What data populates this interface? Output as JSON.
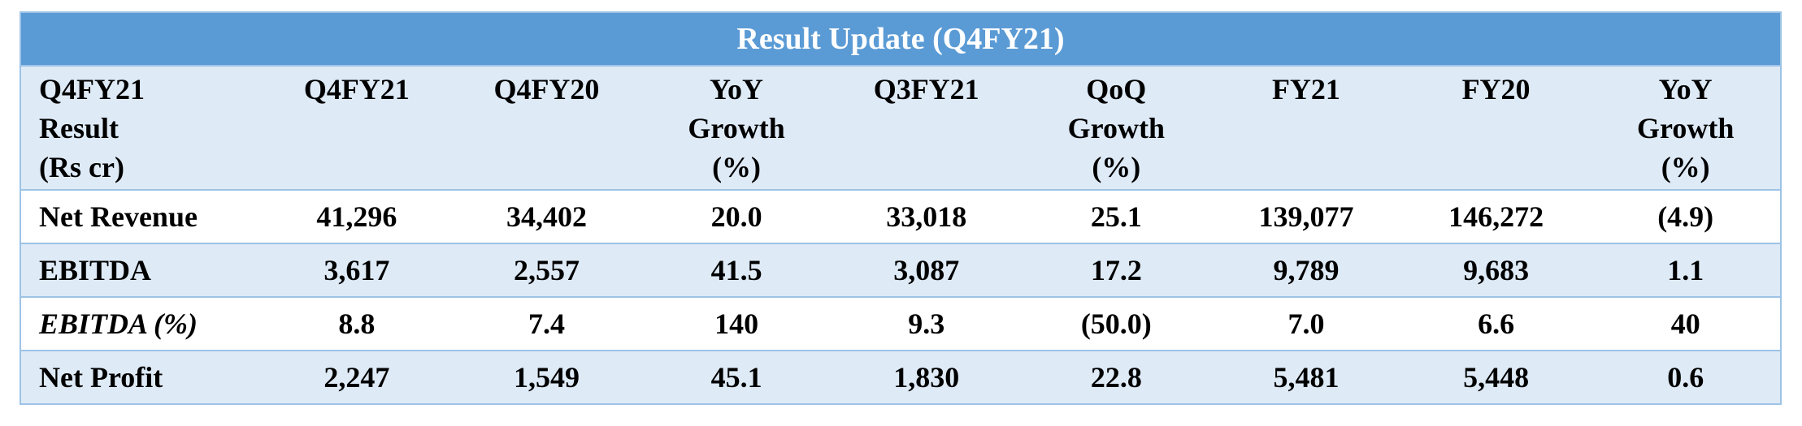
{
  "title": "Result Update (Q4FY21)",
  "table": {
    "header": [
      [
        "Q4FY21",
        "Result",
        "(Rs cr)"
      ],
      [
        "Q4FY21"
      ],
      [
        "Q4FY20"
      ],
      [
        "YoY",
        "Growth",
        "(%)"
      ],
      [
        "Q3FY21"
      ],
      [
        "QoQ",
        "Growth",
        "(%)"
      ],
      [
        "FY21"
      ],
      [
        "FY20"
      ],
      [
        "YoY",
        "Growth",
        "(%)"
      ]
    ],
    "rows": [
      [
        "Net Revenue",
        "41,296",
        "34,402",
        "20.0",
        "33,018",
        "25.1",
        "139,077",
        "146,272",
        "(4.9)"
      ],
      [
        "EBITDA",
        "3,617",
        "2,557",
        "41.5",
        "3,087",
        "17.2",
        "9,789",
        "9,683",
        "1.1"
      ],
      [
        "EBITDA (%)",
        "8.8",
        "7.4",
        "140",
        "9.3",
        "(50.0)",
        "7.0",
        "6.6",
        "40"
      ],
      [
        "Net Profit",
        "2,247",
        "1,549",
        "45.1",
        "1,830",
        "22.8",
        "5,481",
        "5,448",
        "0.6"
      ]
    ]
  }
}
